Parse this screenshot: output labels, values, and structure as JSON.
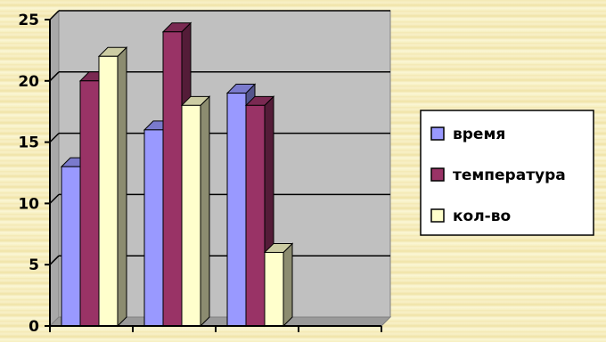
{
  "chart_data": {
    "type": "bar",
    "style": "3d-clustered-column",
    "categories": [
      "",
      "",
      "",
      ""
    ],
    "series": [
      {
        "name": "время",
        "color": "#9999ff",
        "values": [
          13,
          16,
          19,
          null
        ]
      },
      {
        "name": "температура",
        "color": "#993366",
        "values": [
          20,
          24,
          18,
          null
        ]
      },
      {
        "name": "кол-во",
        "color": "#ffffcc",
        "values": [
          22,
          18,
          6,
          null
        ]
      }
    ],
    "y_ticks": [
      "0",
      "5",
      "10",
      "15",
      "20",
      "25"
    ],
    "ylim": [
      0,
      25
    ],
    "grid": true,
    "legend_position": "right",
    "plot_color": "#c0c0c0"
  }
}
